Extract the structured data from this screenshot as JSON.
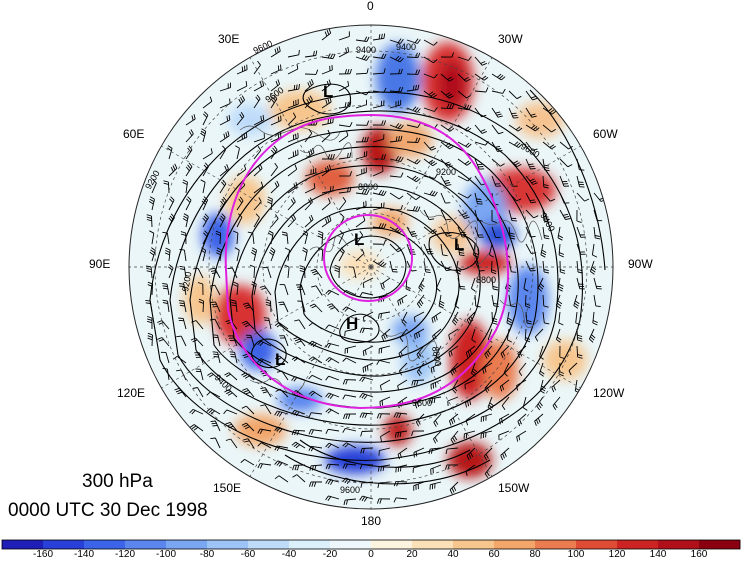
{
  "caption": {
    "level": "300 hPa",
    "time": "0000 UTC 30 Dec 1998"
  },
  "longitude_labels": [
    "0",
    "30W",
    "60W",
    "90W",
    "120W",
    "150W",
    "180",
    "150E",
    "120E",
    "90E",
    "60E",
    "30E"
  ],
  "pressure_systems": [
    "L",
    "L",
    "L",
    "H",
    "L"
  ],
  "contour_labels": [
    "9400",
    "9400",
    "9600",
    "9600",
    "9600",
    "9200",
    "9200",
    "9200",
    "8800",
    "8800",
    "8800",
    "9400",
    "9400",
    "9600",
    "9600"
  ],
  "colorbar": {
    "ticks": [
      "-160",
      "-140",
      "-120",
      "-100",
      "-80",
      "-60",
      "-40",
      "-20",
      "0",
      "20",
      "40",
      "60",
      "80",
      "100",
      "120",
      "140",
      "160"
    ],
    "colors": [
      "#1f1fb8",
      "#2840d8",
      "#3c64e8",
      "#5a86ee",
      "#7aa6f2",
      "#9cc4f6",
      "#bedcfa",
      "#dcf0fc",
      "#eef8fc",
      "#fdf4e0",
      "#fbe0b8",
      "#f7c68e",
      "#f2a66a",
      "#ea7c50",
      "#df4c36",
      "#cc2422",
      "#b0101a",
      "#8a0010"
    ]
  },
  "styles": {
    "ring_color": "#e020e0",
    "contour_color": "#000000",
    "grid_color": "#444444"
  }
}
